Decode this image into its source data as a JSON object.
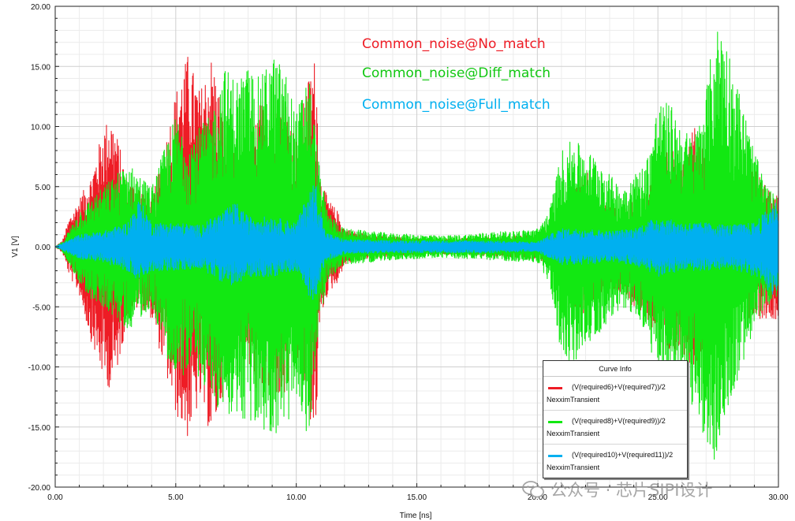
{
  "chart_data": {
    "type": "line",
    "xlabel": "Time [ns]",
    "ylabel": "V1 [V]",
    "xlim": [
      0,
      30
    ],
    "ylim": [
      -20,
      20
    ],
    "x_ticks": [
      "0.00",
      "5.00",
      "10.00",
      "15.00",
      "20.00",
      "25.00",
      "30.00"
    ],
    "y_ticks": [
      "20.00",
      "15.00",
      "10.00",
      "5.00",
      "0.00",
      "-5.00",
      "-10.00",
      "-15.00",
      "-20.00"
    ],
    "grid": true,
    "legend_placement": "bottom-right",
    "annotations": [
      "Common_noise@No_match",
      "Common_noise@Diff_match",
      "Common_noise@Full_match"
    ],
    "series": [
      {
        "name": "(V(required6)+V(required7))/2",
        "color": "#ee1c25",
        "envelope": {
          "x": [
            0,
            0.3,
            0.6,
            1.0,
            1.5,
            2.0,
            2.3,
            2.6,
            3.0,
            3.5,
            4.0,
            4.5,
            5.0,
            5.5,
            6.0,
            6.5,
            7.0,
            7.5,
            8.0,
            8.5,
            9.0,
            9.5,
            10.0,
            10.5,
            10.8,
            11.0,
            11.3,
            11.7,
            12.0,
            13.0,
            14.0,
            15.0,
            16.0,
            17.0,
            18.0,
            19.0,
            20.0,
            20.5,
            21.0,
            21.5,
            22.0,
            22.5,
            23.0,
            23.5,
            24.0,
            24.5,
            25.0,
            25.5,
            26.0,
            26.5,
            27.0,
            27.5,
            28.0,
            28.5,
            29.0,
            29.5,
            30.0
          ],
          "upper": [
            0,
            0.5,
            2.5,
            4.0,
            6.0,
            10.0,
            11.0,
            9.0,
            5.5,
            5.0,
            4.0,
            8.0,
            13.0,
            16.0,
            13.0,
            16.0,
            11.0,
            7.0,
            8.0,
            12.0,
            11.0,
            13.0,
            9.0,
            14.0,
            16.0,
            6.0,
            4.0,
            3.0,
            1.5,
            1.0,
            0.8,
            0.7,
            0.6,
            0.7,
            0.8,
            0.9,
            1.0,
            1.5,
            2.5,
            5.0,
            7.0,
            4.0,
            3.5,
            3.0,
            4.0,
            4.5,
            7.5,
            8.0,
            8.0,
            10.0,
            8.0,
            6.0,
            5.0,
            6.0,
            6.5,
            5.0,
            5.0
          ],
          "lower": [
            0,
            -0.5,
            -2.5,
            -4.0,
            -8.0,
            -11.0,
            -12.0,
            -10.0,
            -6.0,
            -5.0,
            -6.0,
            -10.0,
            -14.0,
            -16.0,
            -13.0,
            -16.0,
            -12.0,
            -8.0,
            -10.0,
            -13.0,
            -12.0,
            -13.0,
            -9.0,
            -14.0,
            -16.0,
            -6.0,
            -4.0,
            -3.0,
            -1.5,
            -1.0,
            -0.8,
            -0.7,
            -0.6,
            -0.7,
            -0.8,
            -0.9,
            -1.0,
            -1.5,
            -2.5,
            -5.0,
            -6.5,
            -4.0,
            -3.5,
            -4.0,
            -5.0,
            -6.0,
            -8.0,
            -9.0,
            -9.0,
            -10.0,
            -8.0,
            -6.5,
            -5.0,
            -6.0,
            -6.0,
            -6.0,
            -6.0
          ]
        }
      },
      {
        "name": "(V(required8)+V(required9))/2",
        "color": "#12e812",
        "envelope": {
          "x": [
            0,
            0.3,
            0.6,
            1.0,
            1.5,
            2.0,
            2.5,
            3.0,
            3.5,
            4.0,
            4.5,
            5.0,
            5.5,
            6.0,
            6.5,
            7.0,
            7.5,
            8.0,
            8.5,
            9.0,
            9.5,
            10.0,
            10.5,
            11.0,
            11.3,
            11.7,
            12.0,
            13.0,
            14.0,
            15.0,
            16.0,
            17.0,
            18.0,
            19.0,
            20.0,
            20.5,
            21.0,
            21.5,
            22.0,
            22.5,
            23.0,
            23.5,
            24.0,
            24.5,
            25.0,
            25.5,
            26.0,
            26.5,
            27.0,
            27.3,
            27.6,
            28.0,
            28.5,
            29.0,
            29.5,
            30.0
          ],
          "upper": [
            0,
            0.4,
            1.5,
            3.0,
            4.0,
            5.0,
            6.0,
            7.0,
            6.0,
            5.0,
            8.0,
            11.0,
            9.0,
            10.0,
            11.0,
            15.0,
            14.0,
            15.0,
            14.0,
            16.0,
            15.0,
            11.0,
            15.0,
            6.0,
            3.0,
            2.0,
            1.5,
            1.3,
            1.1,
            1.0,
            0.9,
            1.0,
            1.2,
            1.3,
            1.5,
            3.0,
            8.0,
            9.0,
            8.0,
            7.5,
            6.0,
            5.0,
            6.0,
            7.0,
            12.0,
            12.0,
            10.0,
            9.0,
            13.0,
            17.5,
            19.0,
            16.0,
            12.0,
            8.0,
            5.0,
            4.0
          ],
          "lower": [
            0,
            -0.4,
            -1.5,
            -3.0,
            -4.5,
            -5.0,
            -6.0,
            -7.0,
            -6.0,
            -5.0,
            -8.0,
            -12.0,
            -10.0,
            -11.0,
            -13.0,
            -14.0,
            -14.0,
            -15.0,
            -15.0,
            -16.0,
            -15.0,
            -14.0,
            -16.0,
            -6.0,
            -3.0,
            -2.0,
            -1.5,
            -1.3,
            -1.1,
            -1.0,
            -0.9,
            -1.0,
            -1.1,
            -1.2,
            -1.3,
            -3.0,
            -9.0,
            -10.0,
            -8.0,
            -7.5,
            -6.0,
            -5.0,
            -6.0,
            -7.0,
            -11.0,
            -12.0,
            -10.0,
            -14.0,
            -16.0,
            -18.5,
            -16.0,
            -13.0,
            -10.0,
            -7.0,
            -5.0,
            -4.0
          ]
        }
      },
      {
        "name": "(V(required10)+V(required11))/2",
        "color": "#00b0f0",
        "envelope": {
          "x": [
            0,
            0.5,
            1.0,
            2.0,
            3.0,
            3.5,
            4.0,
            5.0,
            6.0,
            7.0,
            7.5,
            8.0,
            9.0,
            10.0,
            10.5,
            10.8,
            11.2,
            12.0,
            14.0,
            16.0,
            18.0,
            19.5,
            20.0,
            20.5,
            21.0,
            22.0,
            23.0,
            24.0,
            24.5,
            25.0,
            26.0,
            27.0,
            28.0,
            29.0,
            29.5,
            30.0
          ],
          "upper": [
            0,
            0.5,
            1.0,
            1.3,
            2.0,
            4.0,
            2.0,
            2.0,
            1.8,
            3.0,
            3.7,
            2.5,
            2.5,
            2.0,
            4.5,
            5.5,
            1.2,
            0.6,
            0.5,
            0.5,
            0.5,
            0.4,
            0.4,
            1.0,
            1.5,
            1.5,
            1.3,
            1.5,
            2.0,
            2.5,
            2.0,
            2.0,
            1.8,
            2.0,
            3.0,
            4.0
          ],
          "lower": [
            0,
            -0.5,
            -1.0,
            -1.3,
            -2.0,
            -3.0,
            -2.0,
            -2.0,
            -1.8,
            -3.0,
            -3.3,
            -2.5,
            -2.5,
            -2.0,
            -4.0,
            -5.0,
            -1.2,
            -0.6,
            -0.5,
            -0.5,
            -0.5,
            -0.4,
            -0.4,
            -1.0,
            -1.5,
            -1.5,
            -1.3,
            -1.5,
            -2.0,
            -2.5,
            -2.0,
            -2.0,
            -1.8,
            -2.5,
            -3.5,
            -4.5
          ]
        }
      }
    ]
  },
  "legend": {
    "title": "Curve Info",
    "entries": [
      {
        "expr": "(V(required6)+V(required7))/2",
        "sub": "NexximTransient",
        "color": "#ee1c25"
      },
      {
        "expr": "(V(required8)+V(required9))/2",
        "sub": "NexximTransient",
        "color": "#12e812"
      },
      {
        "expr": "(V(required10)+V(required11))/2",
        "sub": "NexximTransient",
        "color": "#00b0f0"
      }
    ]
  },
  "annotation_colors": [
    "#ee1c25",
    "#12c712",
    "#00b0f0"
  ],
  "watermark": {
    "text": "公众号 · 芯片SIPI设计",
    "icon": "wechat-icon"
  }
}
